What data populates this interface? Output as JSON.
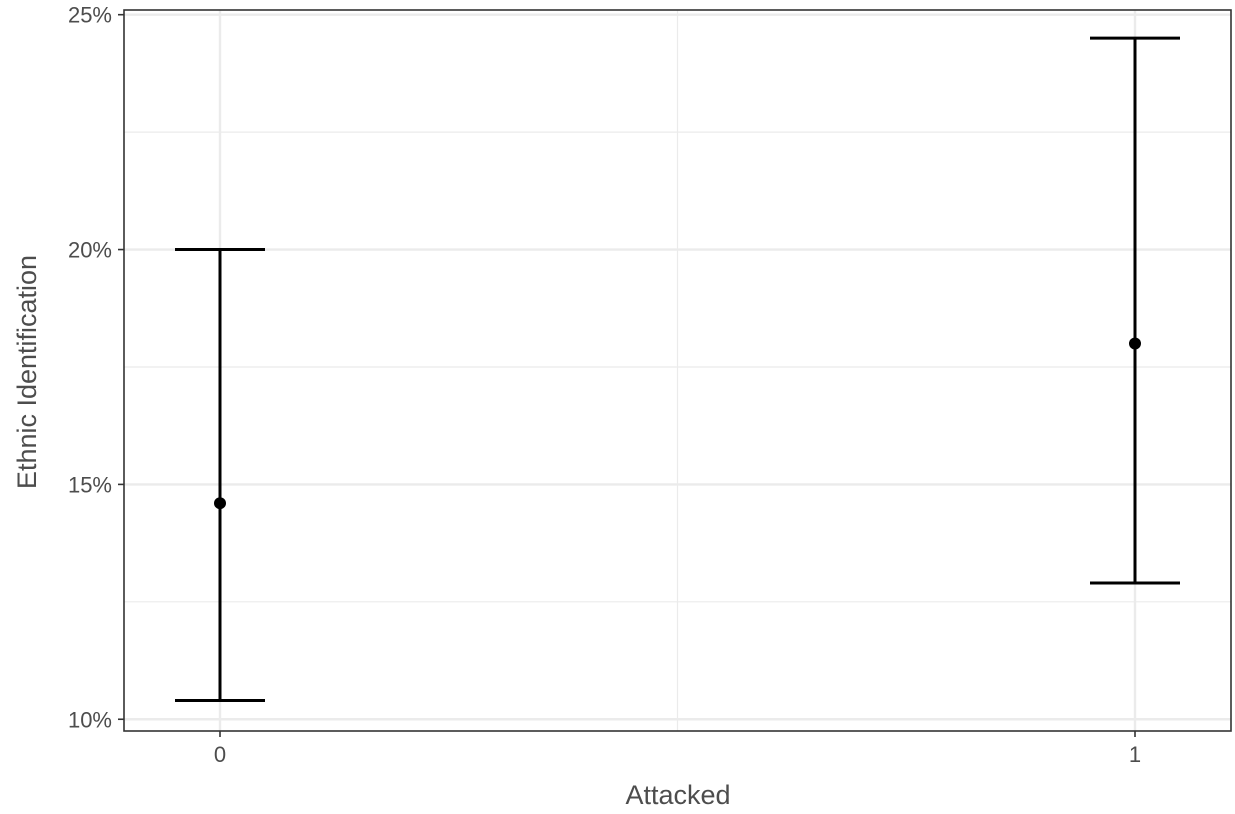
{
  "chart_data": {
    "type": "scatter",
    "title": "",
    "xlabel": "Attacked",
    "ylabel": "Ethnic Identification",
    "categories": [
      "0",
      "1"
    ],
    "series": [
      {
        "points": [
          {
            "x": "0",
            "y": 14.6,
            "ymin": 10.4,
            "ymax": 20.0
          },
          {
            "x": "1",
            "y": 18.0,
            "ymin": 12.9,
            "ymax": 24.5
          }
        ]
      }
    ],
    "ylim": [
      9.75,
      25.1
    ],
    "yticks": [
      10,
      15,
      20,
      25
    ],
    "ytick_labels": [
      "10%",
      "15%",
      "20%",
      "25%"
    ],
    "grid": true,
    "legend": "none",
    "colors": {
      "marks": "#000000",
      "grid": "#ebebeb",
      "panel_border": "#333333",
      "text": "#4d4d4d"
    }
  }
}
